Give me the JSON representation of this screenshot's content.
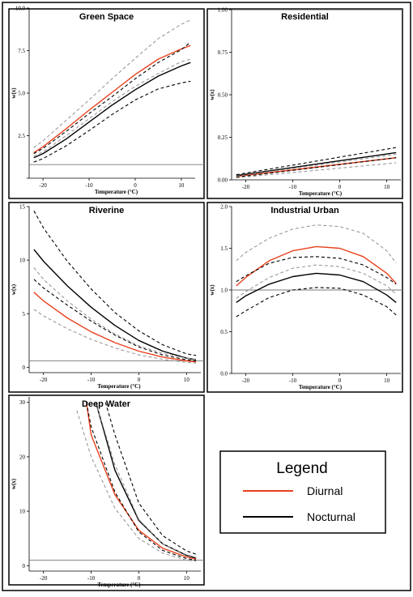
{
  "chart_data": [
    {
      "type": "line",
      "title": "Green Space",
      "xlabel": "Temperature (°C)",
      "ylabel": "w(x)",
      "xlim": [
        -23,
        13
      ],
      "ylim": [
        0,
        10
      ],
      "xticks": [
        -20,
        -10,
        0,
        10
      ],
      "xtick_labels": [
        "-20",
        "-10",
        "0",
        "10"
      ],
      "yticks": [
        0,
        2.5,
        5,
        7.5,
        10
      ],
      "ytick_labels": [
        "",
        "2.5",
        "5.0",
        "7.5",
        "10.0"
      ],
      "hline": 0.8,
      "x": [
        -22,
        -20,
        -15,
        -10,
        -5,
        0,
        5,
        10,
        12
      ],
      "series": [
        {
          "name": "Diurnal",
          "color": "#e8401c",
          "dash": "solid",
          "values": [
            1.5,
            1.85,
            2.9,
            4.0,
            5.05,
            6.1,
            7.0,
            7.6,
            7.8
          ]
        },
        {
          "color": "#000000",
          "dash": "solid",
          "values": [
            1.2,
            1.45,
            2.3,
            3.3,
            4.3,
            5.2,
            6.0,
            6.6,
            6.8
          ]
        },
        {
          "color": "#000000",
          "dash": "dashed",
          "values": [
            1.45,
            1.75,
            2.75,
            3.8,
            4.8,
            5.85,
            6.8,
            7.55,
            8.0
          ]
        },
        {
          "color": "#000000",
          "dash": "dashed",
          "values": [
            0.95,
            1.15,
            1.9,
            2.8,
            3.75,
            4.6,
            5.25,
            5.6,
            5.7
          ]
        },
        {
          "color": "#999999",
          "dash": "dashed",
          "values": [
            1.8,
            2.2,
            3.4,
            4.6,
            5.85,
            7.05,
            8.2,
            9.05,
            9.3
          ]
        },
        {
          "color": "#999999",
          "dash": "dashed",
          "values": [
            1.3,
            1.55,
            2.5,
            3.5,
            4.5,
            5.4,
            6.15,
            6.85,
            7.0
          ]
        }
      ]
    },
    {
      "type": "line",
      "title": "Residential",
      "xlabel": "Temperature (°C)",
      "ylabel": "w(x)",
      "xlim": [
        -23,
        13
      ],
      "ylim": [
        0,
        1
      ],
      "xticks": [
        -20,
        -10,
        0,
        10
      ],
      "xtick_labels": [
        "-20",
        "-10",
        "0",
        "10"
      ],
      "yticks": [
        0,
        0.25,
        0.5,
        0.75,
        1
      ],
      "ytick_labels": [
        "0.00",
        "0.25",
        "0.50",
        "0.75",
        "1.00"
      ],
      "hline": 1.0,
      "x": [
        -22,
        12
      ],
      "series": [
        {
          "name": "Diurnal",
          "color": "#e8401c",
          "dash": "solid",
          "values": [
            0.02,
            0.13
          ]
        },
        {
          "color": "#000000",
          "dash": "solid",
          "values": [
            0.025,
            0.16
          ]
        },
        {
          "color": "#000000",
          "dash": "dashed",
          "values": [
            0.03,
            0.19
          ]
        },
        {
          "color": "#000000",
          "dash": "dashed",
          "values": [
            0.015,
            0.13
          ]
        },
        {
          "color": "#999999",
          "dash": "dashed",
          "values": [
            0.022,
            0.15
          ]
        },
        {
          "color": "#999999",
          "dash": "dashed",
          "values": [
            0.012,
            0.1
          ]
        }
      ]
    },
    {
      "type": "line",
      "title": "Riverine",
      "xlabel": "Temperature (°C)",
      "ylabel": "w(x)",
      "xlim": [
        -23,
        13
      ],
      "ylim": [
        -0.5,
        15
      ],
      "xticks": [
        -20,
        -10,
        0,
        10
      ],
      "xtick_labels": [
        "-20",
        "-10",
        "0",
        "10"
      ],
      "yticks": [
        0,
        5,
        10,
        15
      ],
      "ytick_labels": [
        "0",
        "5",
        "10",
        "15"
      ],
      "hline": 0.6,
      "x": [
        -22,
        -20,
        -15,
        -10,
        -5,
        0,
        5,
        10,
        12
      ],
      "series": [
        {
          "name": "Diurnal",
          "color": "#e8401c",
          "dash": "solid",
          "values": [
            7.0,
            6.2,
            4.6,
            3.3,
            2.3,
            1.5,
            0.95,
            0.6,
            0.5
          ]
        },
        {
          "color": "#000000",
          "dash": "solid",
          "values": [
            11.0,
            9.9,
            7.6,
            5.6,
            3.9,
            2.5,
            1.5,
            0.85,
            0.7
          ]
        },
        {
          "color": "#000000",
          "dash": "dashed",
          "values": [
            14.6,
            13.0,
            9.9,
            7.3,
            5.1,
            3.4,
            2.1,
            1.25,
            1.1
          ]
        },
        {
          "color": "#000000",
          "dash": "dashed",
          "values": [
            8.2,
            7.4,
            5.8,
            4.3,
            3.0,
            1.9,
            1.15,
            0.7,
            0.6
          ]
        },
        {
          "color": "#999999",
          "dash": "dashed",
          "values": [
            9.3,
            8.2,
            6.2,
            4.5,
            3.1,
            2.0,
            1.3,
            0.85,
            0.75
          ]
        },
        {
          "color": "#999999",
          "dash": "dashed",
          "values": [
            5.4,
            4.8,
            3.6,
            2.6,
            1.8,
            1.15,
            0.75,
            0.45,
            0.4
          ]
        }
      ]
    },
    {
      "type": "line",
      "title": "Industrial Urban",
      "xlabel": "Temperature (°C)",
      "ylabel": "w(x)",
      "xlim": [
        -23,
        13
      ],
      "ylim": [
        0,
        2
      ],
      "xticks": [
        -20,
        -10,
        0,
        10
      ],
      "xtick_labels": [
        "-20",
        "-10",
        "0",
        "10"
      ],
      "yticks": [
        0,
        0.5,
        1,
        1.5,
        2
      ],
      "ytick_labels": [
        "0.0",
        "0.5",
        "1.0",
        "1.5",
        "2.0"
      ],
      "hline": 1.0,
      "x": [
        -22,
        -20,
        -15,
        -10,
        -5,
        0,
        5,
        10,
        12
      ],
      "series": [
        {
          "name": "Diurnal",
          "color": "#e8401c",
          "dash": "solid",
          "values": [
            1.05,
            1.15,
            1.35,
            1.47,
            1.52,
            1.5,
            1.4,
            1.2,
            1.08
          ]
        },
        {
          "color": "#000000",
          "dash": "solid",
          "values": [
            0.85,
            0.93,
            1.07,
            1.16,
            1.2,
            1.18,
            1.1,
            0.94,
            0.85
          ]
        },
        {
          "color": "#000000",
          "dash": "dashed",
          "values": [
            1.1,
            1.17,
            1.32,
            1.39,
            1.4,
            1.38,
            1.3,
            1.15,
            1.07
          ]
        },
        {
          "color": "#000000",
          "dash": "dashed",
          "values": [
            0.68,
            0.75,
            0.91,
            1.0,
            1.03,
            1.02,
            0.94,
            0.8,
            0.7
          ]
        },
        {
          "color": "#999999",
          "dash": "dashed",
          "values": [
            1.35,
            1.45,
            1.62,
            1.73,
            1.78,
            1.76,
            1.68,
            1.47,
            1.32
          ]
        },
        {
          "color": "#999999",
          "dash": "dashed",
          "values": [
            0.9,
            0.98,
            1.15,
            1.26,
            1.3,
            1.28,
            1.2,
            1.05,
            0.95
          ]
        }
      ]
    },
    {
      "type": "line",
      "title": "Deep Water",
      "xlabel": "Temperature (°C)",
      "ylabel": "w(x)",
      "xlim": [
        -23,
        13
      ],
      "ylim": [
        -1,
        31
      ],
      "xticks": [
        -20,
        -10,
        0,
        10
      ],
      "xtick_labels": [
        "-20",
        "-10",
        "0",
        "10"
      ],
      "yticks": [
        0,
        10,
        20,
        30
      ],
      "ytick_labels": [
        "0",
        "10",
        "20",
        "30"
      ],
      "hline": 1.0,
      "x": [
        -12,
        -10,
        -5,
        0,
        5,
        10,
        12
      ],
      "series": [
        {
          "name": "Diurnal",
          "color": "#e8401c",
          "dash": "solid",
          "x": [
            -11,
            -10,
            -5,
            0,
            5,
            10,
            12
          ],
          "values": [
            30,
            24,
            13,
            6.5,
            3.2,
            1.6,
            1.2
          ]
        },
        {
          "color": "#000000",
          "dash": "solid",
          "x": [
            -9,
            -5,
            0,
            5,
            10,
            12
          ],
          "values": [
            30,
            17.5,
            8.3,
            4.0,
            1.9,
            1.4
          ]
        },
        {
          "color": "#000000",
          "dash": "dashed",
          "x": [
            -7,
            -5,
            0,
            5,
            10,
            12
          ],
          "values": [
            30,
            24,
            11.5,
            5.5,
            2.7,
            2.1
          ]
        },
        {
          "color": "#000000",
          "dash": "dashed",
          "x": [
            -11,
            -10,
            -5,
            0,
            5,
            10,
            12
          ],
          "values": [
            30,
            25.5,
            13.5,
            6.2,
            2.8,
            1.3,
            1.0
          ]
        },
        {
          "color": "#999999",
          "dash": "dashed",
          "x": [
            -9,
            -5,
            0,
            5,
            10,
            12
          ],
          "values": [
            30,
            18.5,
            8.5,
            4.0,
            2.0,
            1.5
          ]
        },
        {
          "color": "#999999",
          "dash": "dashed",
          "x": [
            -13,
            -10,
            -5,
            0,
            5,
            10,
            12
          ],
          "values": [
            28.5,
            20,
            10.5,
            5.0,
            2.3,
            1.0,
            0.8
          ]
        }
      ]
    }
  ],
  "legend": {
    "title": "Legend",
    "items": [
      {
        "label": "Diurnal",
        "color": "#e8401c"
      },
      {
        "label": "Nocturnal",
        "color": "#000000"
      }
    ]
  }
}
